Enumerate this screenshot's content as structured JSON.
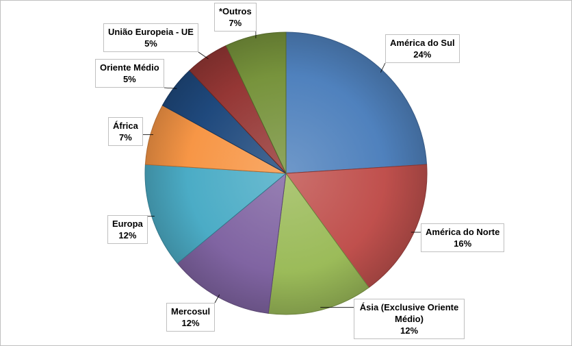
{
  "chart_data": {
    "type": "pie",
    "title": "",
    "slices": [
      {
        "label": "América do Sul",
        "value": 24,
        "value_label": "24%",
        "color": "#4f81bd"
      },
      {
        "label": "América do Norte",
        "value": 16,
        "value_label": "16%",
        "color": "#c0504d"
      },
      {
        "label": "Ásia (Exclusive Oriente Médio)",
        "value": 12,
        "value_label": "12%",
        "color": "#9bbb59"
      },
      {
        "label": "Mercosul",
        "value": 12,
        "value_label": "12%",
        "color": "#8064a2"
      },
      {
        "label": "Europa",
        "value": 12,
        "value_label": "12%",
        "color": "#4bacc6"
      },
      {
        "label": "África",
        "value": 7,
        "value_label": "7%",
        "color": "#f79646"
      },
      {
        "label": "Oriente Médio",
        "value": 5,
        "value_label": "5%",
        "color": "#1f497d"
      },
      {
        "label": "União Europeia - UE",
        "value": 5,
        "value_label": "5%",
        "color": "#953735"
      },
      {
        "label": "*Outros",
        "value": 7,
        "value_label": "7%",
        "color": "#77933c"
      }
    ]
  }
}
